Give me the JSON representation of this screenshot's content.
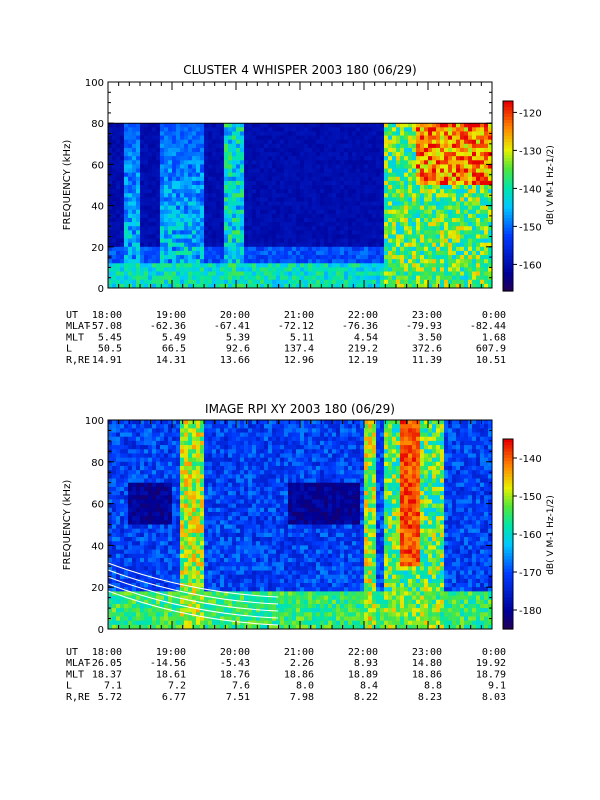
{
  "chart_data": [
    {
      "type": "heatmap",
      "title": "CLUSTER 4 WHISPER 2003 180 (06/29)",
      "ylabel": "FREQUENCY (kHz)",
      "ylim": [
        0,
        100
      ],
      "yticks": [
        "0",
        "20",
        "40",
        "60",
        "80",
        "100"
      ],
      "data_ceiling_khz": 80,
      "colorbar": {
        "label": "dB( V M<sup>-1</sup> Hz<sup>-1/2</sup>)",
        "label_plain": "dB( V M-1 Hz-1/2)",
        "range": [
          -167,
          -117
        ],
        "ticks": [
          "-120",
          "-130",
          "-140",
          "-150",
          "-160"
        ]
      },
      "ephemeris": {
        "rows": [
          {
            "label": "UT",
            "values": [
              "18:00",
              "19:00",
              "20:00",
              "21:00",
              "22:00",
              "23:00",
              "0:00"
            ]
          },
          {
            "label": "MLAT",
            "values": [
              "-57.08",
              "-62.36",
              "-67.41",
              "-72.12",
              "-76.36",
              "-79.93",
              "-82.44"
            ]
          },
          {
            "label": "MLT",
            "values": [
              "5.45",
              "5.49",
              "5.39",
              "5.11",
              "4.54",
              "3.50",
              "1.68"
            ]
          },
          {
            "label": "L",
            "values": [
              "50.5",
              "66.5",
              "92.6",
              "137.4",
              "219.2",
              "372.6",
              "607.9"
            ]
          },
          {
            "label": "R,RE",
            "values": [
              "14.91",
              "14.31",
              "13.66",
              "12.96",
              "12.19",
              "11.39",
              "10.51"
            ]
          }
        ]
      },
      "x_hours": [
        0,
        1,
        2,
        3,
        4,
        5,
        6
      ]
    },
    {
      "type": "heatmap",
      "title": "IMAGE RPI XY 2003 180 (06/29)",
      "ylabel": "FREQUENCY (kHz)",
      "ylim": [
        0,
        100
      ],
      "yticks": [
        "0",
        "20",
        "40",
        "60",
        "80",
        "100"
      ],
      "colorbar": {
        "label_plain": "dB( V M-1 Hz-1/2)",
        "range": [
          -185,
          -135
        ],
        "ticks": [
          "-140",
          "-150",
          "-160",
          "-170",
          "-180"
        ]
      },
      "ephemeris": {
        "rows": [
          {
            "label": "UT",
            "values": [
              "18:00",
              "19:00",
              "20:00",
              "21:00",
              "22:00",
              "23:00",
              "0:00"
            ]
          },
          {
            "label": "MLAT",
            "values": [
              "-26.05",
              "-14.56",
              "-5.43",
              "2.26",
              "8.93",
              "14.80",
              "19.92"
            ]
          },
          {
            "label": "MLT",
            "values": [
              "18.37",
              "18.61",
              "18.76",
              "18.86",
              "18.89",
              "18.86",
              "18.79"
            ]
          },
          {
            "label": "L",
            "values": [
              "7.1",
              "7.2",
              "7.6",
              "8.0",
              "8.4",
              "8.8",
              "9.1"
            ]
          },
          {
            "label": "R,RE",
            "values": [
              "5.72",
              "6.77",
              "7.51",
              "7.98",
              "8.22",
              "8.23",
              "8.03"
            ]
          }
        ]
      },
      "x_hours": [
        0,
        1,
        2,
        3,
        4,
        5,
        6
      ]
    }
  ]
}
